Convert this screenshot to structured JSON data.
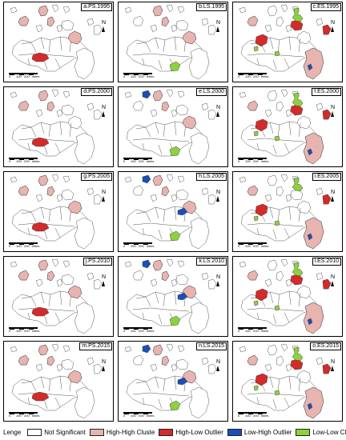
{
  "legend": {
    "title": "Lenge",
    "items": [
      {
        "key": "ns",
        "label": "Not Significant",
        "color": "#ffffff"
      },
      {
        "key": "hh",
        "label": "High-High Cluste",
        "color": "#e8b4b0"
      },
      {
        "key": "hl",
        "label": "High-Low Outlier",
        "color": "#d42a2a"
      },
      {
        "key": "lh",
        "label": "Low-High Outlier",
        "color": "#1a4fb8"
      },
      {
        "key": "ll",
        "label": "Low-Low Cluster",
        "color": "#8cd23c"
      }
    ]
  },
  "map": {
    "north_label": "N",
    "scale_labels": [
      "0",
      "100",
      "200"
    ],
    "scale_unit": "miles"
  },
  "panels": [
    {
      "title": "a.PS.1995",
      "hh": [
        "nw",
        "north",
        "east"
      ],
      "hl": [
        "hlc"
      ],
      "lh": [],
      "ll": []
    },
    {
      "title": "b.LS.1995",
      "hh": [
        "east",
        "north"
      ],
      "hl": [],
      "lh": [],
      "ll": [
        "center_s"
      ]
    },
    {
      "title": "c.ES.1995",
      "hh": [
        "nw",
        "se"
      ],
      "hl": [
        "west_hl",
        "ne_hl",
        "far_e"
      ],
      "lh": [
        "lh_se"
      ],
      "ll": [
        "ne_ring",
        "west_ll",
        "center_ll"
      ]
    },
    {
      "title": "d.PS.2000",
      "hh": [
        "nw",
        "north"
      ],
      "hl": [
        "hlc"
      ],
      "lh": [],
      "ll": []
    },
    {
      "title": "e.LS.2000",
      "hh": [
        "east",
        "north"
      ],
      "hl": [],
      "lh": [
        "lh_nw"
      ],
      "ll": [
        "center_s"
      ]
    },
    {
      "title": "f.ES.2000",
      "hh": [
        "nw",
        "se"
      ],
      "hl": [
        "west_hl",
        "ne_hl",
        "far_e"
      ],
      "lh": [
        "lh_se"
      ],
      "ll": [
        "ne_ring",
        "west_ll",
        "center_ll"
      ]
    },
    {
      "title": "g.PS.2005",
      "hh": [
        "nw",
        "north",
        "east"
      ],
      "hl": [
        "hlc"
      ],
      "lh": [],
      "ll": []
    },
    {
      "title": "h.LS.2005",
      "hh": [
        "east",
        "north"
      ],
      "hl": [],
      "lh": [
        "lh_nw",
        "lh_c"
      ],
      "ll": [
        "center_s"
      ]
    },
    {
      "title": "i.ES.2005",
      "hh": [
        "nw",
        "se"
      ],
      "hl": [
        "west_hl",
        "far_e"
      ],
      "lh": [
        "lh_se"
      ],
      "ll": [
        "ne_ring",
        "west_ll",
        "center_ll"
      ]
    },
    {
      "title": "j.PS.2010",
      "hh": [
        "nw",
        "north",
        "east"
      ],
      "hl": [
        "hlc"
      ],
      "lh": [],
      "ll": []
    },
    {
      "title": "k.LS.2010",
      "hh": [
        "east",
        "north"
      ],
      "hl": [],
      "lh": [
        "lh_nw",
        "lh_c"
      ],
      "ll": [
        "center_s"
      ]
    },
    {
      "title": "l.ES.2010",
      "hh": [
        "nw",
        "se"
      ],
      "hl": [
        "west_hl",
        "ne_hl",
        "far_e"
      ],
      "lh": [
        "lh_se"
      ],
      "ll": [
        "ne_ring",
        "west_ll",
        "center_ll"
      ]
    },
    {
      "title": "m.PS.2015",
      "hh": [
        "nw",
        "north",
        "east"
      ],
      "hl": [
        "hlc"
      ],
      "lh": [],
      "ll": []
    },
    {
      "title": "n.LS.2015",
      "hh": [
        "east",
        "north"
      ],
      "hl": [],
      "lh": [
        "lh_nw",
        "lh_c"
      ],
      "ll": [
        "center_s"
      ]
    },
    {
      "title": "o.ES.2015",
      "hh": [
        "nw",
        "se"
      ],
      "hl": [
        "west_hl",
        "ne_hl",
        "far_e"
      ],
      "lh": [
        "lh_se"
      ],
      "ll": [
        "ne_ring",
        "west_ll",
        "center_ll"
      ]
    }
  ]
}
